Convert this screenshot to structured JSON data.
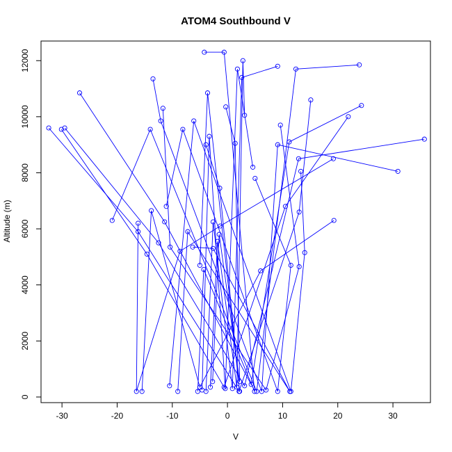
{
  "chart_data": {
    "type": "line",
    "title": "ATOM4 Southbound V",
    "xlabel": "V",
    "ylabel": "Altitude (m)",
    "xlim": [
      -33.8,
      36.8
    ],
    "ylim": [
      -200,
      12700
    ],
    "x_ticks": [
      -30,
      -20,
      -10,
      0,
      10,
      20,
      30
    ],
    "y_ticks": [
      0,
      2000,
      4000,
      6000,
      8000,
      10000,
      12000
    ],
    "series_style": {
      "color": "#0000ff",
      "marker": "open-circle",
      "line": "solid"
    },
    "grid": false,
    "legend": "none",
    "series": [
      {
        "x": [
          -32.4,
          -16.2,
          2.1,
          13.0,
          15.1
        ],
        "y": [
          9600,
          5900,
          200,
          6600,
          10600
        ]
      },
      {
        "x": [
          -30.1,
          -14.6,
          -0.6,
          10.5,
          21.9
        ],
        "y": [
          9550,
          5100,
          350,
          6800,
          10000
        ]
      },
      {
        "x": [
          -29.5,
          -12.5,
          3.1,
          12.9,
          35.7
        ],
        "y": [
          9600,
          5500,
          400,
          8500,
          9200
        ]
      },
      {
        "x": [
          -26.8,
          -11.4,
          4.3,
          11.2,
          24.3
        ],
        "y": [
          10850,
          6250,
          450,
          9100,
          10400
        ]
      },
      {
        "x": [
          -20.9,
          -14.0,
          5.3,
          12.4,
          23.9
        ],
        "y": [
          6300,
          9550,
          200,
          11700,
          11850
        ]
      },
      {
        "x": [
          -16.2,
          -16.5,
          -8.6,
          -1.3,
          19.2
        ],
        "y": [
          6200,
          200,
          5200,
          6100,
          8500
        ]
      },
      {
        "x": [
          -15.5,
          -13.8,
          -5.0,
          6.0,
          19.3
        ],
        "y": [
          200,
          6650,
          350,
          4500,
          6300
        ]
      },
      {
        "x": [
          -13.5,
          -12.1,
          6.2,
          9.1,
          30.9
        ],
        "y": [
          11350,
          9850,
          200,
          9000,
          8050
        ]
      },
      {
        "x": [
          -11.7,
          -10.4,
          7.0,
          13.0,
          9.6
        ],
        "y": [
          10300,
          5350,
          250,
          4650,
          9700
        ]
      },
      {
        "x": [
          -11.1,
          -8.1,
          9.1,
          11.5,
          5.0
        ],
        "y": [
          6800,
          9550,
          200,
          4700,
          7800
        ]
      },
      {
        "x": [
          -10.5,
          -6.1,
          11.5,
          14.0,
          13.3
        ],
        "y": [
          400,
          9850,
          200,
          5150,
          8050
        ]
      },
      {
        "x": [
          -9.0,
          -7.2,
          11.3,
          -2.6,
          -6.3
        ],
        "y": [
          200,
          5900,
          200,
          5300,
          5350
        ]
      },
      {
        "x": [
          -5.4,
          -4.3,
          4.9,
          -0.6,
          -4.2
        ],
        "y": [
          200,
          4550,
          200,
          12300,
          12300
        ]
      },
      {
        "x": [
          -5.0,
          -3.6,
          2.2,
          -1.4,
          -3.9
        ],
        "y": [
          4700,
          10850,
          200,
          7450,
          9000
        ]
      },
      {
        "x": [
          -4.6,
          -3.3,
          -0.4,
          1.8,
          4.6
        ],
        "y": [
          250,
          9300,
          300,
          11700,
          8200
        ]
      },
      {
        "x": [
          -3.9,
          -2.6,
          0.9,
          2.6,
          9.1
        ],
        "y": [
          200,
          6250,
          300,
          11400,
          11800
        ]
      },
      {
        "x": [
          -3.1,
          -1.8,
          1.7,
          2.8,
          3.1
        ],
        "y": [
          350,
          5550,
          350,
          12000,
          10050
        ]
      },
      {
        "x": [
          -2.7,
          -1.5,
          2.2,
          1.4,
          -0.3
        ],
        "y": [
          550,
          5800,
          550,
          9050,
          10350
        ]
      }
    ]
  }
}
